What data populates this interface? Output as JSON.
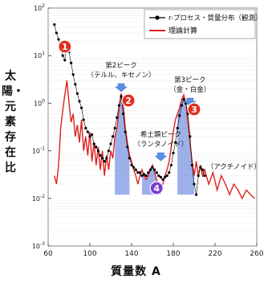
{
  "chart_data": {
    "type": "line",
    "title": "",
    "xlabel": "質量数 A",
    "ylabel": "太陽・元素存在比",
    "xlim": [
      60,
      260
    ],
    "ylim_log10": [
      -3,
      2
    ],
    "x_ticks": [
      "60",
      "100",
      "140",
      "180",
      "220",
      "260"
    ],
    "y_ticks": [
      "10^-3",
      "10^-2",
      "10^-1",
      "10^0",
      "10^1",
      "10^2"
    ],
    "legend": {
      "position": "top-right",
      "entries": [
        {
          "label": "r-プロセス・質量分布（観測）",
          "color": "#000000",
          "marker": "circle"
        },
        {
          "label": "理論計算",
          "color": "#e02020",
          "marker": "line"
        }
      ]
    },
    "series": [
      {
        "name": "r-プロセス・質量分布（観測）",
        "color": "#000000",
        "x": [
          66,
          68,
          70,
          72,
          74,
          76,
          78,
          80,
          82,
          84,
          86,
          88,
          90,
          92,
          94,
          96,
          98,
          100,
          102,
          104,
          106,
          108,
          110,
          112,
          114,
          116,
          118,
          120,
          122,
          124,
          126,
          128,
          130,
          132,
          134,
          136,
          138,
          140,
          142,
          144,
          146,
          148,
          150,
          152,
          154,
          156,
          158,
          160,
          162,
          164,
          166,
          168,
          170,
          172,
          174,
          176,
          178,
          180,
          182,
          184,
          186,
          188,
          190,
          192,
          194,
          196,
          198,
          200,
          202,
          204,
          206,
          208,
          210
        ],
        "y": [
          45,
          30,
          22,
          15,
          10,
          8,
          20,
          12,
          7,
          4,
          2.5,
          1.6,
          1.1,
          0.8,
          0.45,
          0.3,
          0.25,
          0.2,
          0.22,
          0.14,
          0.12,
          0.1,
          0.08,
          0.07,
          0.06,
          0.07,
          0.1,
          0.14,
          0.2,
          0.3,
          0.5,
          0.9,
          1.4,
          0.6,
          0.25,
          0.12,
          0.07,
          0.05,
          0.045,
          0.04,
          0.035,
          0.035,
          0.03,
          0.032,
          0.03,
          0.035,
          0.04,
          0.045,
          0.04,
          0.035,
          0.03,
          0.028,
          0.025,
          0.028,
          0.03,
          0.035,
          0.05,
          0.09,
          0.15,
          0.3,
          0.55,
          0.9,
          1.2,
          1.0,
          0.6,
          0.2,
          0.05,
          0.02,
          0.012,
          0.03,
          0.045,
          0.04,
          0.03
        ]
      },
      {
        "name": "理論計算",
        "color": "#e02020",
        "x": [
          66,
          68,
          70,
          72,
          74,
          76,
          78,
          80,
          82,
          84,
          86,
          88,
          90,
          92,
          94,
          96,
          98,
          100,
          102,
          104,
          106,
          108,
          110,
          112,
          114,
          116,
          118,
          120,
          122,
          124,
          126,
          128,
          130,
          132,
          134,
          136,
          138,
          140,
          142,
          144,
          146,
          148,
          150,
          152,
          154,
          156,
          158,
          160,
          162,
          164,
          166,
          168,
          170,
          172,
          174,
          176,
          178,
          180,
          182,
          184,
          186,
          188,
          190,
          192,
          194,
          196,
          198,
          200,
          202,
          204,
          206,
          208,
          210,
          214,
          218,
          222,
          226,
          230,
          234,
          238,
          242,
          246,
          250,
          254,
          258
        ],
        "y": [
          0.03,
          0.02,
          0.05,
          0.3,
          0.7,
          1.5,
          3.0,
          1.0,
          0.4,
          0.6,
          0.2,
          0.35,
          0.15,
          0.45,
          0.1,
          0.2,
          0.08,
          0.25,
          0.06,
          0.15,
          0.05,
          0.12,
          0.04,
          0.1,
          0.03,
          0.08,
          0.04,
          0.1,
          0.07,
          0.2,
          0.3,
          0.8,
          1.6,
          0.9,
          0.3,
          0.15,
          0.08,
          0.06,
          0.04,
          0.03,
          0.02,
          0.03,
          0.04,
          0.03,
          0.025,
          0.03,
          0.04,
          0.05,
          0.035,
          0.025,
          0.02,
          0.018,
          0.02,
          0.03,
          0.04,
          0.06,
          0.12,
          0.25,
          0.45,
          0.6,
          0.8,
          1.2,
          1.5,
          1.0,
          0.4,
          0.15,
          0.06,
          0.03,
          0.06,
          0.03,
          0.05,
          0.03,
          0.04,
          0.02,
          0.035,
          0.015,
          0.03,
          0.02,
          0.012,
          0.02,
          0.015,
          0.01,
          0.015,
          0.012,
          0.01
        ]
      }
    ],
    "annotations": [
      {
        "label": "第2ピーク",
        "sublabel": "（テルル、キセノン）",
        "x": 130,
        "arrow": true
      },
      {
        "label": "第3ピーク",
        "sublabel": "（金・白金）",
        "x": 195,
        "arrow": true
      },
      {
        "label": "希土類ピーク",
        "sublabel": "（ランタノイド）",
        "x": 165,
        "arrow": true
      },
      {
        "label": "（アクチノイド）",
        "x": 232
      }
    ],
    "markers": [
      {
        "label": "1",
        "color": "#e0301e",
        "x": 78
      },
      {
        "label": "2",
        "color": "#e0301e",
        "x": 137
      },
      {
        "label": "3",
        "color": "#e0301e",
        "x": 201
      },
      {
        "label": "4",
        "color": "#7a3fd1",
        "x": 165
      }
    ]
  }
}
